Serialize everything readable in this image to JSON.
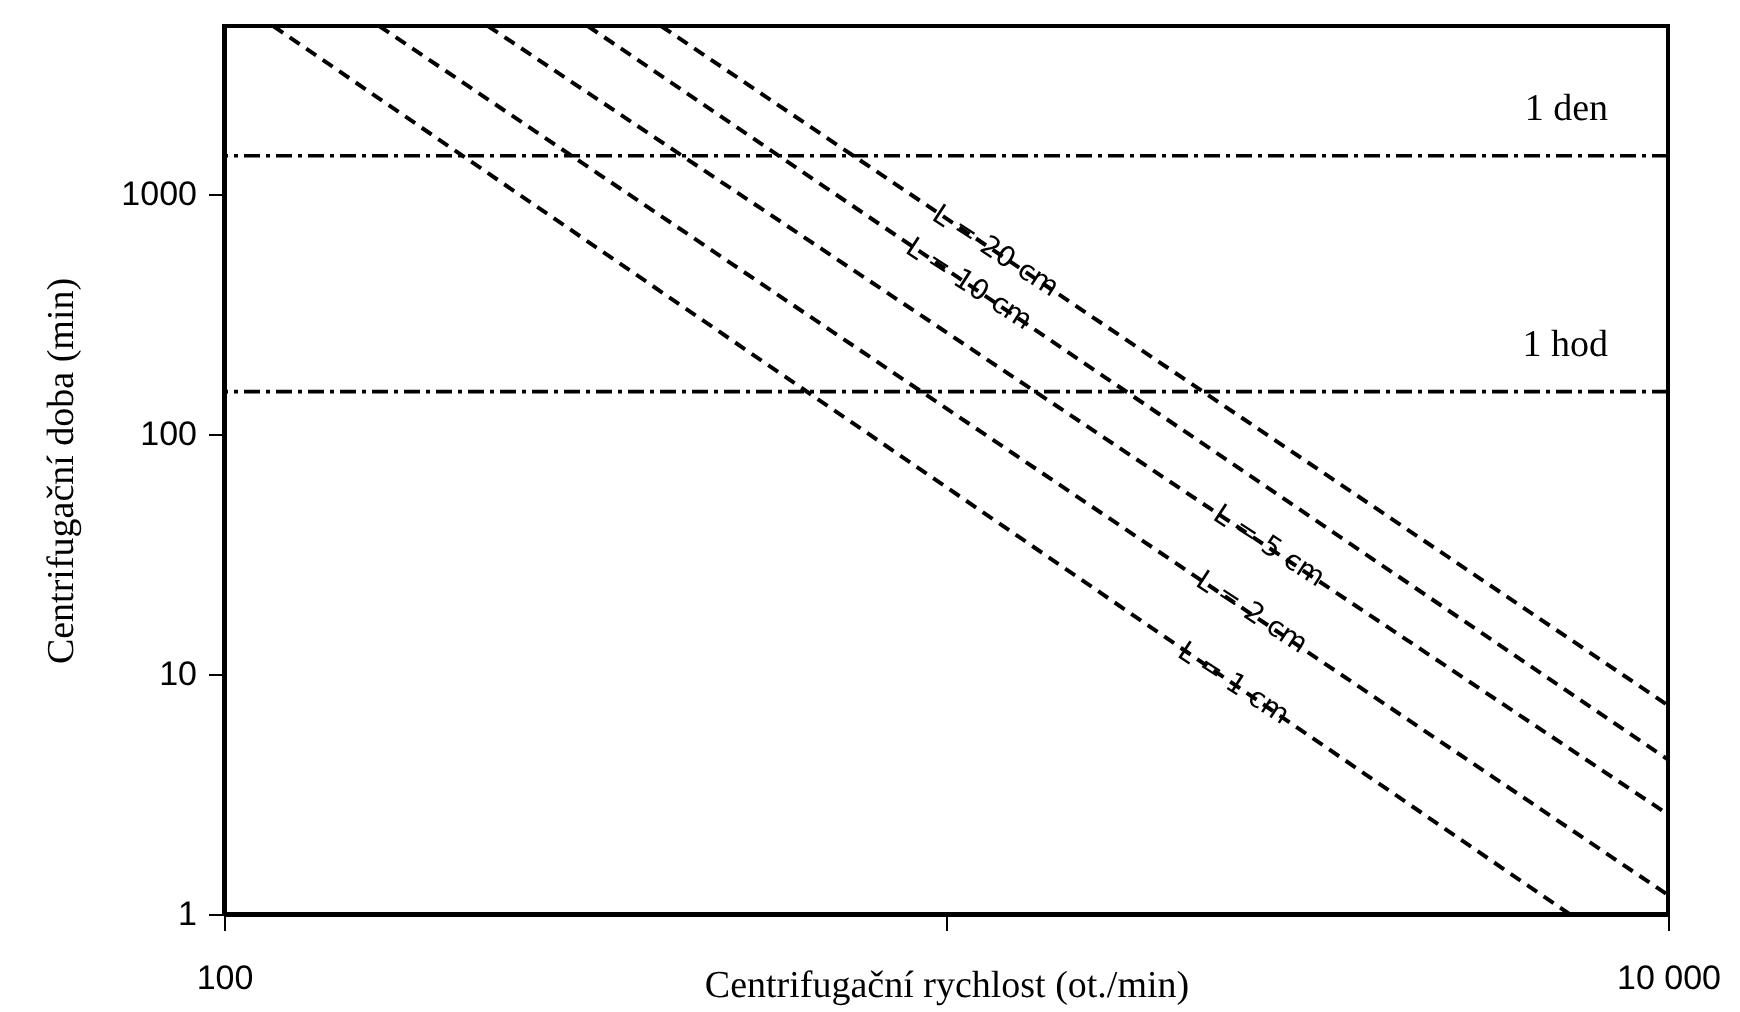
{
  "chart_data": {
    "type": "line",
    "xlabel": "Centrifugační rychlost (ot./min)",
    "ylabel": "Centrifugační doba (min)",
    "log": "xy",
    "xlim": [
      100,
      10000
    ],
    "ylim": [
      1,
      5000
    ],
    "xticks": [
      100,
      {
        "value": 1000,
        "label": null
      },
      {
        "value": 10000,
        "label": "10 000"
      }
    ],
    "yticks": [
      1,
      10,
      100,
      1000
    ],
    "grid": false,
    "marker": "none",
    "line_style": "dashed",
    "series": [
      {
        "color": "#000000",
        "x": [
          117,
          7300
        ],
        "values": [
          5000,
          1
        ]
      },
      {
        "color": "#000000",
        "x": [
          164,
          10000
        ],
        "values": [
          5000,
          1.2
        ]
      },
      {
        "color": "#000000",
        "x": [
          232,
          10000
        ],
        "values": [
          5000,
          2.6
        ]
      },
      {
        "color": "#000000",
        "x": [
          319,
          10000
        ],
        "values": [
          5000,
          4.4
        ]
      },
      {
        "color": "#000000",
        "x": [
          403,
          10000
        ],
        "values": [
          5000,
          7.4
        ]
      }
    ],
    "ref_lines": [
      {
        "axis": "y",
        "value": 1440,
        "label": "1 den",
        "color": "#000000",
        "line_style": "dotted"
      },
      {
        "axis": "y",
        "value": 150,
        "label": "1 hod",
        "color": "#000000",
        "line_style": "dotted"
      }
    ],
    "annotations": [
      {
        "text": "L = 20 cm",
        "x": 1170,
        "y": 575
      },
      {
        "text": "L = 10 cm",
        "x": 1075,
        "y": 419
      },
      {
        "text": "L = 5 cm",
        "x": 2800,
        "y": 34
      },
      {
        "text": "L = 2 cm",
        "x": 2650,
        "y": 18
      },
      {
        "text": "L = 1 cm",
        "x": 2500,
        "y": 9.1
      }
    ]
  }
}
